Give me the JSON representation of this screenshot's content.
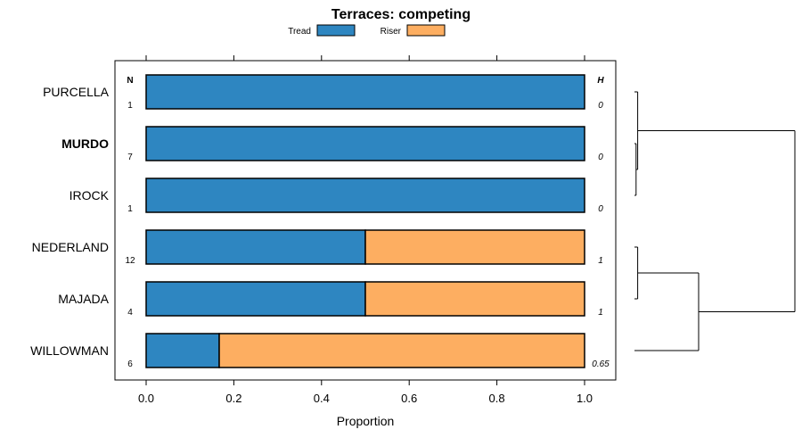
{
  "chart_data": {
    "type": "bar",
    "orientation": "horizontal",
    "stacked": true,
    "title": "Terraces: competing",
    "xlabel": "Proportion",
    "xlim": [
      0,
      1
    ],
    "xticks": [
      0.0,
      0.2,
      0.4,
      0.6,
      0.8,
      1.0
    ],
    "xtick_labels": [
      "0.0",
      "0.2",
      "0.4",
      "0.6",
      "0.8",
      "1.0"
    ],
    "categories": [
      "PURCELLA",
      "MURDO",
      "IROCK",
      "NEDERLAND",
      "MAJADA",
      "WILLOWMAN"
    ],
    "highlighted_category": "MURDO",
    "series": [
      {
        "name": "Tread",
        "color": "#2e86c1",
        "values": [
          1.0,
          1.0,
          1.0,
          0.5,
          0.5,
          0.1667
        ]
      },
      {
        "name": "Riser",
        "color": "#fdae61",
        "values": [
          0.0,
          0.0,
          0.0,
          0.5,
          0.5,
          0.8333
        ]
      }
    ],
    "n_header": "N",
    "n_values": [
      "1",
      "7",
      "1",
      "12",
      "4",
      "6"
    ],
    "h_header": "H",
    "h_values": [
      "0",
      "0",
      "0",
      "1",
      "1",
      "0.65"
    ],
    "legend": {
      "position": "top",
      "entries": [
        "Tread",
        "Riser"
      ]
    },
    "dendrogram": {
      "leaves": [
        "PURCELLA",
        "MURDO",
        "IROCK",
        "NEDERLAND",
        "MAJADA",
        "WILLOWMAN"
      ],
      "merges": [
        {
          "id": "A",
          "children": [
            "MURDO",
            "IROCK"
          ],
          "height": 0.01
        },
        {
          "id": "B",
          "children": [
            "PURCELLA",
            "A"
          ],
          "height": 0.02
        },
        {
          "id": "C",
          "children": [
            "NEDERLAND",
            "MAJADA"
          ],
          "height": 0.02
        },
        {
          "id": "D",
          "children": [
            "C",
            "WILLOWMAN"
          ],
          "height": 0.4
        },
        {
          "id": "E",
          "children": [
            "B",
            "D"
          ],
          "height": 1.0
        }
      ]
    }
  }
}
